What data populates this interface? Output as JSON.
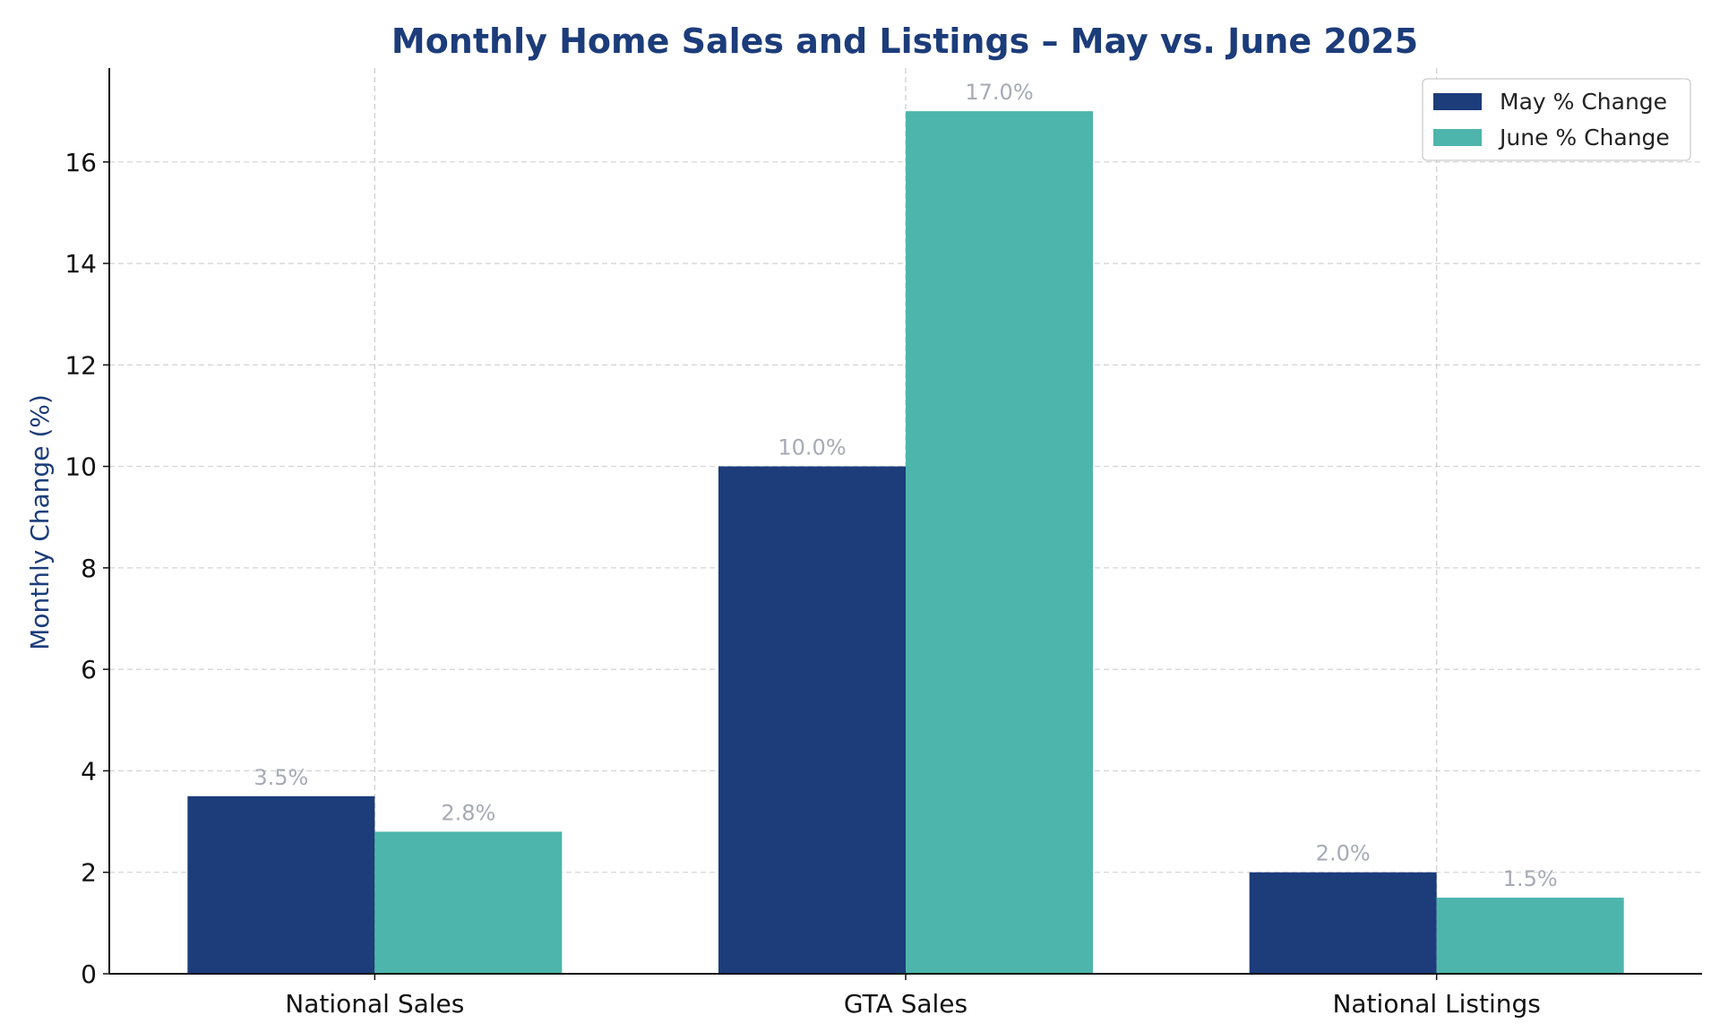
{
  "chart_data": {
    "type": "bar",
    "title": "Monthly Home Sales and Listings – May vs. June 2025",
    "ylabel": "Monthly Change (%)",
    "xlabel": "",
    "categories": [
      "National Sales",
      "GTA Sales",
      "National Listings"
    ],
    "series": [
      {
        "name": "May % Change",
        "color": "#1c3c7a",
        "values": [
          3.5,
          10.0,
          2.0
        ],
        "labels": [
          "3.5%",
          "10.0%",
          "2.0%"
        ]
      },
      {
        "name": "June % Change",
        "color": "#4db5ac",
        "values": [
          2.8,
          17.0,
          1.5
        ],
        "labels": [
          "2.8%",
          "17.0%",
          "1.5%"
        ]
      }
    ],
    "ylim": [
      0,
      17.85
    ],
    "yticks": [
      0,
      2,
      4,
      6,
      8,
      10,
      12,
      14,
      16
    ],
    "grid": true,
    "legend_position": "top-right",
    "title_color": "#1c3c7a",
    "ylabel_color": "#1c3c7a"
  }
}
